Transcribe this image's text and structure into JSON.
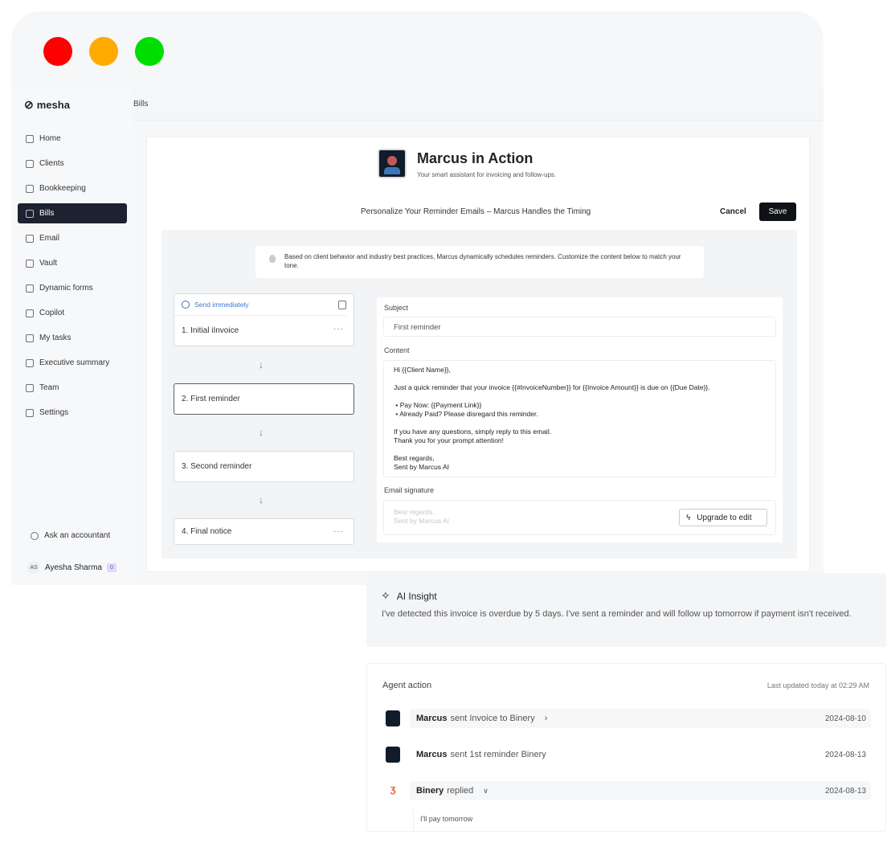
{
  "window": {
    "controls": [
      {
        "name": "close",
        "color": "#ff0000"
      },
      {
        "name": "minimize",
        "color": "#ffaa00"
      },
      {
        "name": "maximize",
        "color": "#00dd00"
      }
    ]
  },
  "sidebar": {
    "logo": "mesha",
    "items": [
      {
        "label": "Home",
        "icon": "home-icon"
      },
      {
        "label": "Clients",
        "icon": "users-icon"
      },
      {
        "label": "Bookkeeping",
        "icon": "frame-icon"
      },
      {
        "label": "Bills",
        "icon": "receipt-icon",
        "active": true
      },
      {
        "label": "Email",
        "icon": "mail-icon"
      },
      {
        "label": "Vault",
        "icon": "vault-icon"
      },
      {
        "label": "Dynamic forms",
        "icon": "form-icon"
      },
      {
        "label": "Copilot",
        "icon": "copilot-icon"
      },
      {
        "label": "My tasks",
        "icon": "clipboard-icon"
      },
      {
        "label": "Executive summary",
        "icon": "document-icon"
      },
      {
        "label": "Team",
        "icon": "team-icon"
      },
      {
        "label": "Settings",
        "icon": "gear-icon"
      }
    ],
    "ask": "Ask an accountant",
    "user": {
      "initials": "AS",
      "name": "Ayesha Sharma",
      "badge": "0"
    }
  },
  "header": {
    "breadcrumb": "Bills"
  },
  "main": {
    "title": "Marcus in Action",
    "subtitle": "Your smart assistant for invoicing and follow-ups.",
    "section_title": "Personalize Your Reminder Emails – Marcus Handles the Timing",
    "cancel": "Cancel",
    "save": "Save",
    "info": "Based on client behavior and industry best practices, Marcus dynamically schedules reminders. Customize the content below to match your tone.",
    "send_timing": "Send immediately",
    "steps": [
      "1.  Initial iInvoice",
      "2.  First reminder",
      "3.  Second reminder",
      "4.  Final notice"
    ],
    "editor": {
      "subject_label": "Subject",
      "subject_value": "First reminder",
      "content_label": "Content",
      "content": {
        "greeting": "Hi {{Client Name}},",
        "body": "Just a quick reminder that your invoice {{#InvoiceNumber}} for {{Invoice Amount}} is due on {{Due Date}}.",
        "bullets": [
          "Pay Now: {{Payment Link}}",
          "Already Paid? Please disregard this reminder."
        ],
        "line1": "If you have any questions, simply reply to this email.",
        "line2": "Thank you for your prompt attention!",
        "closing": "Best regards,",
        "sender": "Sent by Marcus AI"
      },
      "signature_label": "Email signature",
      "signature_line1": "Best regards,",
      "signature_line2": "Sent by Marcus AI",
      "upgrade": "Upgrade to edit"
    }
  },
  "insight": {
    "title": "AI Insight",
    "text": "I've detected this invoice is overdue by 5 days. I've sent a reminder and will follow up tomorrow if payment isn't received."
  },
  "agent": {
    "title": "Agent action",
    "updated": "Last updated today at 02:29 AM",
    "rows": [
      {
        "actor": "Marcus",
        "action": "sent Invoice to Binery",
        "date": "2024-08-10"
      },
      {
        "actor": "Marcus",
        "action": "sent 1st reminder Binery",
        "date": "2024-08-13"
      },
      {
        "actor": "Binery",
        "action": "replied",
        "date": "2024-08-13",
        "reply": "I'll pay tomorrow"
      }
    ]
  }
}
